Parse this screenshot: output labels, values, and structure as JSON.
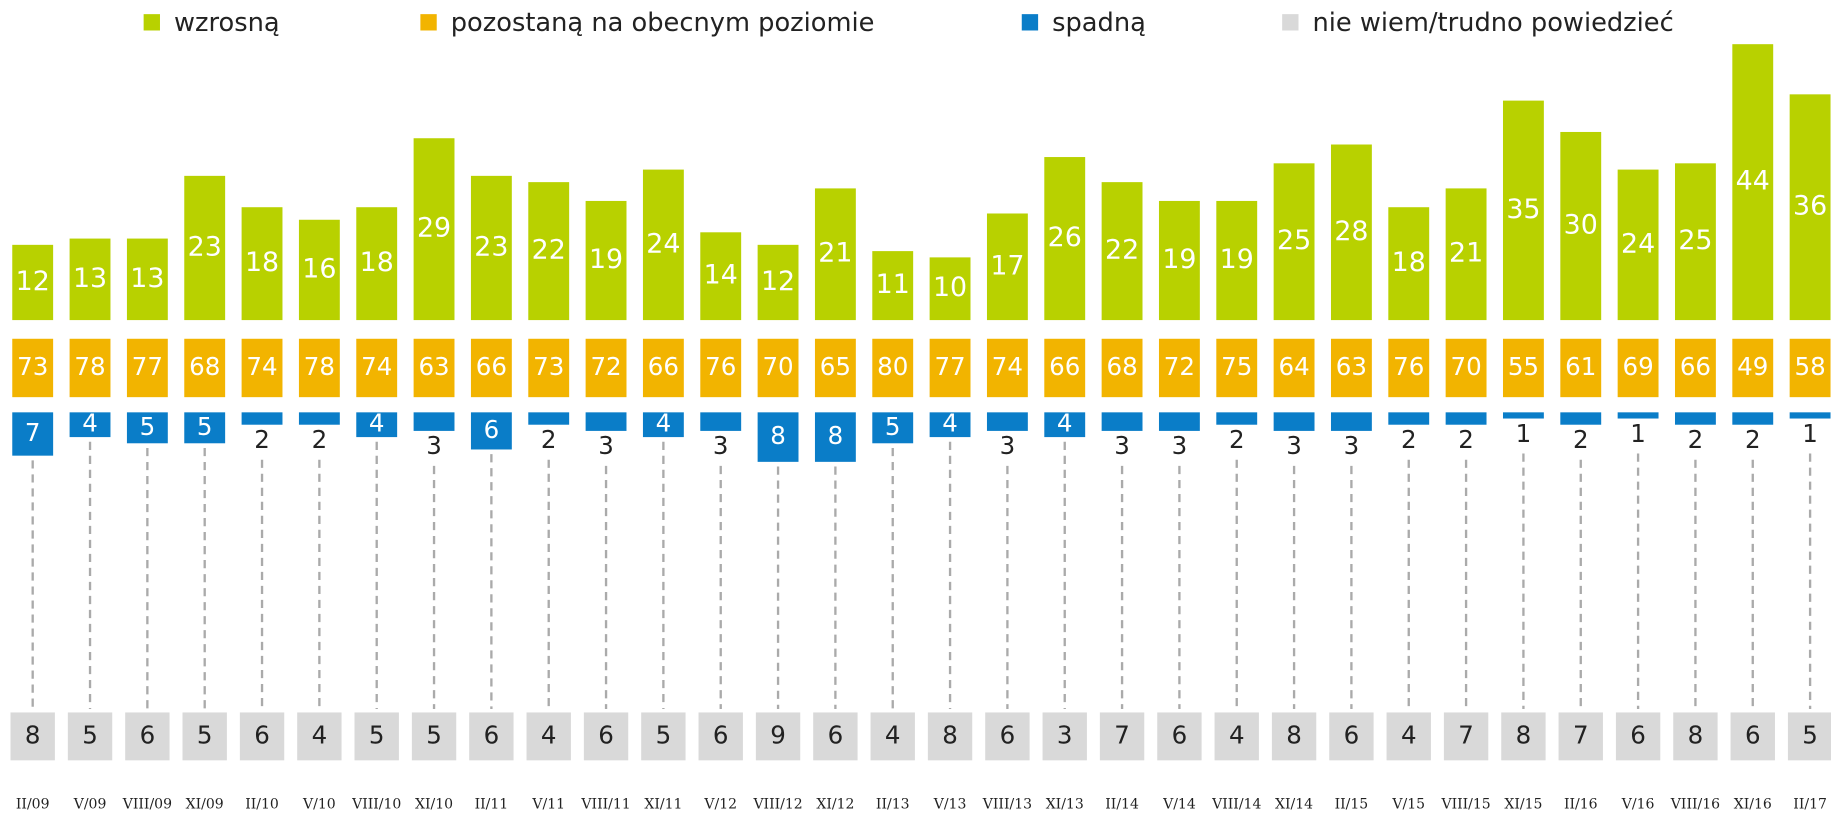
{
  "chart_data": {
    "type": "bar",
    "categories": [
      "II/09",
      "V/09",
      "VIII/09",
      "XI/09",
      "II/10",
      "V/10",
      "VIII/10",
      "XI/10",
      "II/11",
      "V/11",
      "VIII/11",
      "XI/11",
      "V/12",
      "VIII/12",
      "XI/12",
      "II/13",
      "V/13",
      "VIII/13",
      "XI/13",
      "II/14",
      "V/14",
      "VIII/14",
      "XI/14",
      "II/15",
      "V/15",
      "VIII/15",
      "XI/15",
      "II/16",
      "V/16",
      "VIII/16",
      "XI/16",
      "II/17"
    ],
    "series": [
      {
        "name": "wzrosną",
        "color": "#b8d100",
        "values": [
          12,
          13,
          13,
          23,
          18,
          16,
          18,
          29,
          23,
          22,
          19,
          24,
          14,
          12,
          21,
          11,
          10,
          17,
          26,
          22,
          19,
          19,
          25,
          28,
          18,
          21,
          35,
          30,
          24,
          25,
          44,
          36
        ]
      },
      {
        "name": "pozostaną na obecnym poziomie",
        "color": "#f2b400",
        "values": [
          73,
          78,
          77,
          68,
          74,
          78,
          74,
          63,
          66,
          73,
          72,
          66,
          76,
          70,
          65,
          80,
          77,
          74,
          66,
          68,
          72,
          75,
          64,
          63,
          76,
          70,
          55,
          61,
          69,
          66,
          49,
          58
        ]
      },
      {
        "name": "spadną",
        "color": "#0a7dc8",
        "values": [
          7,
          4,
          5,
          5,
          2,
          2,
          4,
          3,
          6,
          2,
          3,
          4,
          3,
          8,
          8,
          5,
          4,
          3,
          4,
          3,
          3,
          2,
          3,
          3,
          2,
          2,
          1,
          2,
          1,
          2,
          2,
          1
        ]
      },
      {
        "name": "nie wiem/trudno powiedzieć",
        "color": "#d9d9d9",
        "values": [
          8,
          5,
          6,
          5,
          6,
          4,
          5,
          5,
          6,
          4,
          6,
          5,
          6,
          9,
          6,
          4,
          8,
          6,
          3,
          7,
          6,
          4,
          8,
          6,
          4,
          7,
          8,
          7,
          6,
          8,
          6,
          5
        ]
      }
    ]
  }
}
